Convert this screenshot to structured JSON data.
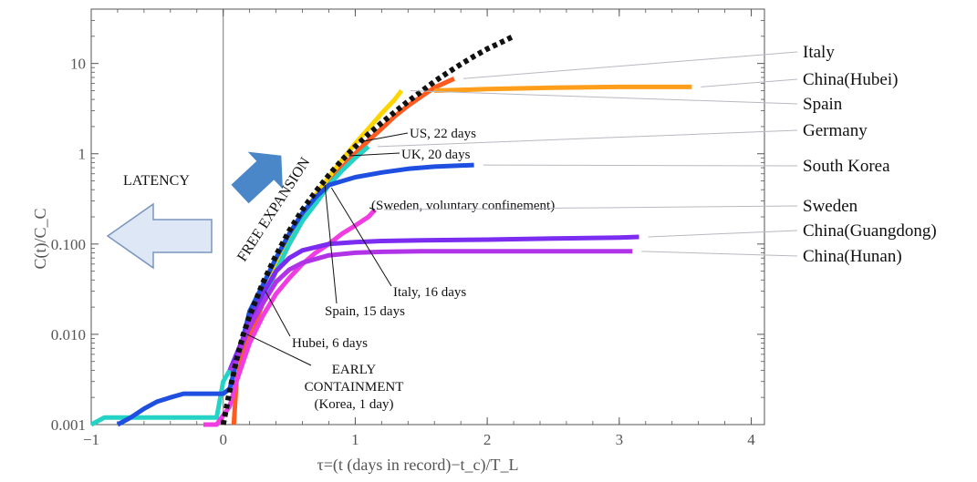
{
  "chart_data": {
    "type": "line",
    "title": "",
    "xlabel": "τ=(t (days in record)−t_c)/T_L",
    "ylabel": "C(t)/C_C",
    "y_scale": "log",
    "xlim": [
      -1,
      4.1
    ],
    "ylim": [
      0.001,
      40
    ],
    "x_ticks": [
      {
        "v": -1,
        "label": "−1"
      },
      {
        "v": 0,
        "label": "0"
      },
      {
        "v": 1,
        "label": "1"
      },
      {
        "v": 2,
        "label": "2"
      },
      {
        "v": 3,
        "label": "3"
      },
      {
        "v": 4,
        "label": "4"
      }
    ],
    "y_ticks": [
      {
        "v": 0.001,
        "label": "0.001"
      },
      {
        "v": 0.01,
        "label": "0.010"
      },
      {
        "v": 0.1,
        "label": "0.100"
      },
      {
        "v": 1,
        "label": "1"
      },
      {
        "v": 10,
        "label": "10"
      }
    ],
    "reference_curve": {
      "name": "",
      "color": "#111111",
      "style": "dotted",
      "x": [
        0,
        0.05,
        0.1,
        0.15,
        0.2,
        0.3,
        0.4,
        0.5,
        0.6,
        0.7,
        0.8,
        0.9,
        1.0,
        1.1,
        1.2,
        1.3,
        1.4,
        1.5,
        1.6,
        1.7,
        1.8,
        1.9,
        2.0,
        2.1,
        2.2
      ],
      "y": [
        0.001,
        0.0024,
        0.0052,
        0.0097,
        0.016,
        0.037,
        0.075,
        0.14,
        0.24,
        0.38,
        0.58,
        0.85,
        1.2,
        1.65,
        2.2,
        2.9,
        3.8,
        4.9,
        6.3,
        7.9,
        9.8,
        12.0,
        14.5,
        17.0,
        20.0
      ]
    },
    "series": [
      {
        "name": "Italy",
        "color": "#ff5a1f",
        "x": [
          0.08,
          0.1,
          0.15,
          0.2,
          0.3,
          0.4,
          0.5,
          0.6,
          0.7,
          0.8,
          0.9,
          1.0,
          1.1,
          1.2,
          1.3,
          1.4,
          1.5,
          1.6,
          1.75
        ],
        "y": [
          0.001,
          0.003,
          0.006,
          0.009,
          0.022,
          0.05,
          0.1,
          0.18,
          0.3,
          0.48,
          0.7,
          1.0,
          1.4,
          1.9,
          2.6,
          3.4,
          4.3,
          5.4,
          6.8
        ]
      },
      {
        "name": "China(Hubei)",
        "color": "#ff9e1a",
        "x": [
          1.6,
          2.0,
          2.5,
          3.0,
          3.55
        ],
        "y": [
          5.0,
          5.2,
          5.4,
          5.5,
          5.5
        ]
      },
      {
        "name": "Spain",
        "color": "#ffd500",
        "x": [
          0.2,
          0.3,
          0.4,
          0.5,
          0.6,
          0.7,
          0.8,
          0.9,
          1.0,
          1.1,
          1.2,
          1.3,
          1.35
        ],
        "y": [
          0.012,
          0.025,
          0.055,
          0.11,
          0.2,
          0.35,
          0.55,
          0.85,
          1.3,
          1.9,
          2.8,
          4.0,
          5.0
        ]
      },
      {
        "name": "Germany",
        "color": "#24d3c6",
        "x": [
          -1.0,
          -0.9,
          -0.6,
          -0.3,
          -0.05,
          0.0,
          0.05,
          0.1,
          0.2,
          0.3,
          0.4,
          0.5,
          0.6,
          0.7,
          0.8,
          0.9,
          1.0,
          1.1
        ],
        "y": [
          0.001,
          0.0012,
          0.0012,
          0.0012,
          0.0012,
          0.003,
          0.004,
          0.006,
          0.012,
          0.025,
          0.05,
          0.1,
          0.18,
          0.28,
          0.45,
          0.65,
          0.9,
          1.2
        ]
      },
      {
        "name": "South Korea",
        "color": "#1f4fe0",
        "x": [
          -0.8,
          -0.7,
          -0.6,
          -0.5,
          -0.4,
          -0.3,
          -0.1,
          0.0,
          0.05,
          0.1,
          0.15,
          0.2,
          0.3,
          0.4,
          0.5,
          0.6,
          0.7,
          0.8,
          1.0,
          1.2,
          1.4,
          1.6,
          1.9
        ],
        "y": [
          0.001,
          0.0012,
          0.0015,
          0.0018,
          0.002,
          0.0022,
          0.0022,
          0.0022,
          0.0025,
          0.005,
          0.009,
          0.018,
          0.035,
          0.07,
          0.13,
          0.22,
          0.33,
          0.45,
          0.55,
          0.62,
          0.68,
          0.72,
          0.75
        ]
      },
      {
        "name": "Sweden",
        "color": "#f03ce0",
        "x": [
          -0.15,
          -0.05,
          0.05,
          0.1,
          0.2,
          0.3,
          0.4,
          0.5,
          0.6,
          0.7,
          0.8,
          0.9,
          1.0,
          1.1,
          1.15
        ],
        "y": [
          0.001,
          0.001,
          0.0016,
          0.003,
          0.008,
          0.016,
          0.028,
          0.042,
          0.06,
          0.08,
          0.1,
          0.13,
          0.16,
          0.2,
          0.24
        ]
      },
      {
        "name": "China(Guangdong)",
        "color": "#7a2cf0",
        "x": [
          0.05,
          0.1,
          0.15,
          0.2,
          0.3,
          0.4,
          0.5,
          0.6,
          0.8,
          1.0,
          1.2,
          1.5,
          2.0,
          2.5,
          3.0,
          3.15
        ],
        "y": [
          0.004,
          0.006,
          0.009,
          0.014,
          0.028,
          0.05,
          0.07,
          0.085,
          0.1,
          0.105,
          0.108,
          0.11,
          0.112,
          0.115,
          0.118,
          0.12
        ]
      },
      {
        "name": "China(Hunan)",
        "color": "#b133e8",
        "x": [
          0.05,
          0.1,
          0.15,
          0.2,
          0.3,
          0.4,
          0.5,
          0.6,
          0.8,
          1.0,
          1.2,
          1.5,
          2.0,
          2.5,
          3.0,
          3.1
        ],
        "y": [
          0.004,
          0.005,
          0.008,
          0.012,
          0.022,
          0.038,
          0.052,
          0.062,
          0.075,
          0.08,
          0.082,
          0.083,
          0.083,
          0.083,
          0.083,
          0.083
        ]
      }
    ],
    "legend": [
      {
        "label": "Italy",
        "series": "Italy"
      },
      {
        "label": "China(Hubei)",
        "series": "China(Hubei)"
      },
      {
        "label": "Spain",
        "series": "Spain"
      },
      {
        "label": "Germany",
        "series": "Germany"
      },
      {
        "label": "South Korea",
        "series": "South Korea"
      },
      {
        "label": "Sweden",
        "series": "Sweden"
      },
      {
        "label": "China(Guangdong)",
        "series": "China(Guangdong)"
      },
      {
        "label": "China(Hunan)",
        "series": "China(Hunan)"
      }
    ],
    "legend_position": "right",
    "annotations": [
      {
        "lines": [
          "US, 22 days"
        ],
        "anchor_x": 1.03,
        "anchor_y": 1.35
      },
      {
        "lines": [
          "UK, 20 days"
        ],
        "anchor_x": 0.95,
        "anchor_y": 0.95
      },
      {
        "lines": [
          "(Sweden, voluntary confinement)"
        ],
        "anchor_x": 1.15,
        "anchor_y": 0.24
      },
      {
        "lines": [
          "Italy, 16 days"
        ],
        "anchor_x": 0.82,
        "anchor_y": 0.42
      },
      {
        "lines": [
          "Spain, 15 days"
        ],
        "anchor_x": 0.77,
        "anchor_y": 0.45
      },
      {
        "lines": [
          "Hubei, 6 days"
        ],
        "anchor_x": 0.32,
        "anchor_y": 0.03
      },
      {
        "lines": [
          "EARLY",
          "CONTAINMENT",
          "(Korea, 1 day)"
        ],
        "anchor_x": 0.18,
        "anchor_y": 0.01
      }
    ],
    "region_labels": {
      "latency": "LATENCY",
      "free_expansion": "FREE EXPANSION"
    }
  },
  "colors": {
    "axis": "#555555",
    "latency_arrow_fill": "#dde7f5",
    "latency_arrow_stroke": "#7b95be",
    "expansion_arrow": "#4a87c8",
    "leader_line": "#b8b8c0"
  }
}
